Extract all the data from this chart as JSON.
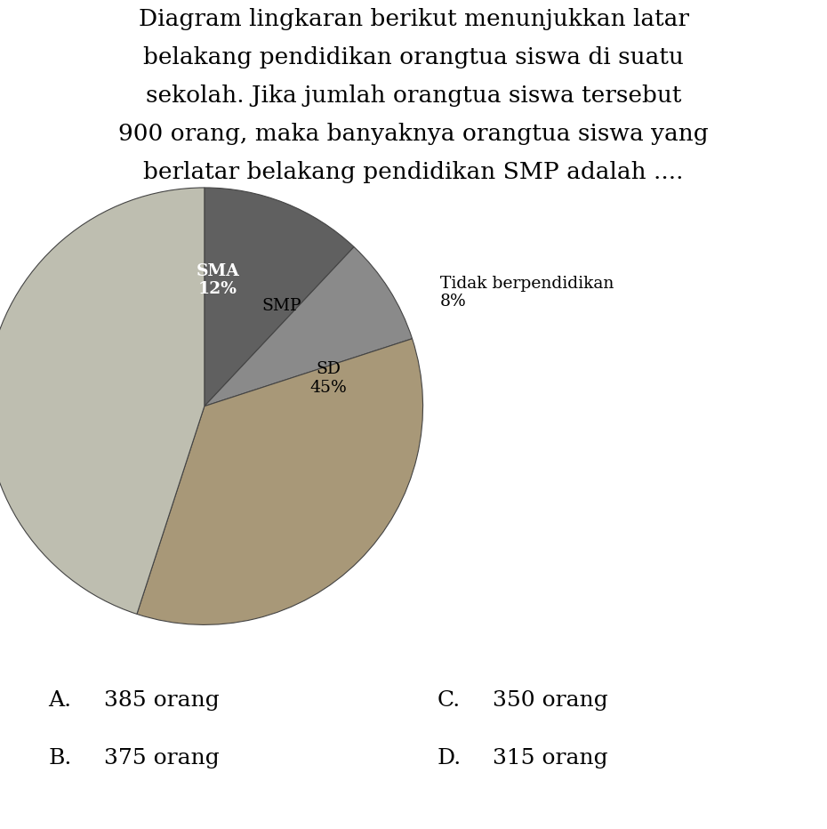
{
  "slices": [
    {
      "label": "SMA\n12%",
      "value": 12,
      "color": "#606060",
      "text_color": "white",
      "bold": true,
      "outside": false
    },
    {
      "label": "Tidak berpendidikan\n8%",
      "value": 8,
      "color": "#8a8a8a",
      "text_color": "black",
      "bold": false,
      "outside": true
    },
    {
      "label": "SMP",
      "value": 35,
      "color": "#a89878",
      "text_color": "black",
      "bold": false,
      "outside": false
    },
    {
      "label": "SD\n45%",
      "value": 45,
      "color": "#bebeb0",
      "text_color": "black",
      "bold": false,
      "outside": false
    }
  ],
  "title_lines": [
    "Diagram lingkaran berikut menunjukkan latar",
    "belakang pendidikan orangtua siswa di suatu",
    "sekolah. Jika jumlah orangtua siswa tersebut",
    "900 orang, maka banyaknya orangtua siswa yang",
    "berlatar belakang pendidikan SMP adalah ...."
  ],
  "options_left": [
    {
      "letter": "A.",
      "text": "385 orang"
    },
    {
      "letter": "B.",
      "text": "375 orang"
    }
  ],
  "options_right": [
    {
      "letter": "C.",
      "text": "350 orang"
    },
    {
      "letter": "D.",
      "text": "315 orang"
    }
  ],
  "background_color": "#ffffff",
  "fig_width": 9.3,
  "fig_height": 9.32,
  "dpi": 100
}
